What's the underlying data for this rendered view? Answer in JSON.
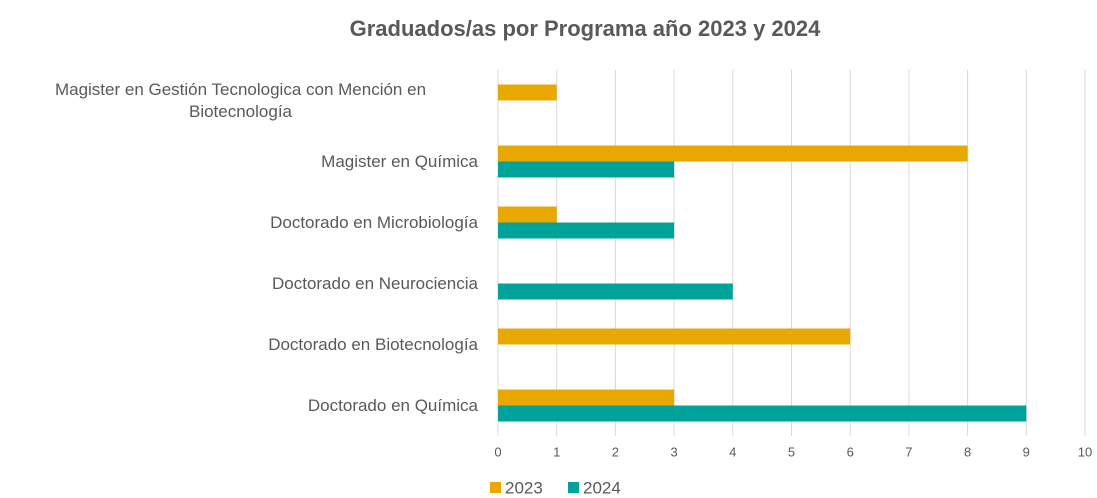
{
  "chart_data": {
    "type": "hbar",
    "title": "Graduados/as por Programa año 2023 y 2024",
    "categories": [
      "Magister en Gestión Tecnologica con Mención en Biotecnología",
      "Magister en Química",
      "Doctorado en Microbiología",
      "Doctorado en Neurociencia",
      "Doctorado en Biotecnología",
      "Doctorado en Química"
    ],
    "series": [
      {
        "name": "2023",
        "color": "#e8a800",
        "values": [
          1,
          8,
          1,
          0,
          6,
          3
        ]
      },
      {
        "name": "2024",
        "color": "#00a39a",
        "values": [
          0,
          3,
          3,
          4,
          0,
          9
        ]
      }
    ],
    "xlim": [
      0,
      10
    ],
    "xticks": [
      0,
      1,
      2,
      3,
      4,
      5,
      6,
      7,
      8,
      9,
      10
    ],
    "grid": true,
    "legend": "bottom"
  }
}
